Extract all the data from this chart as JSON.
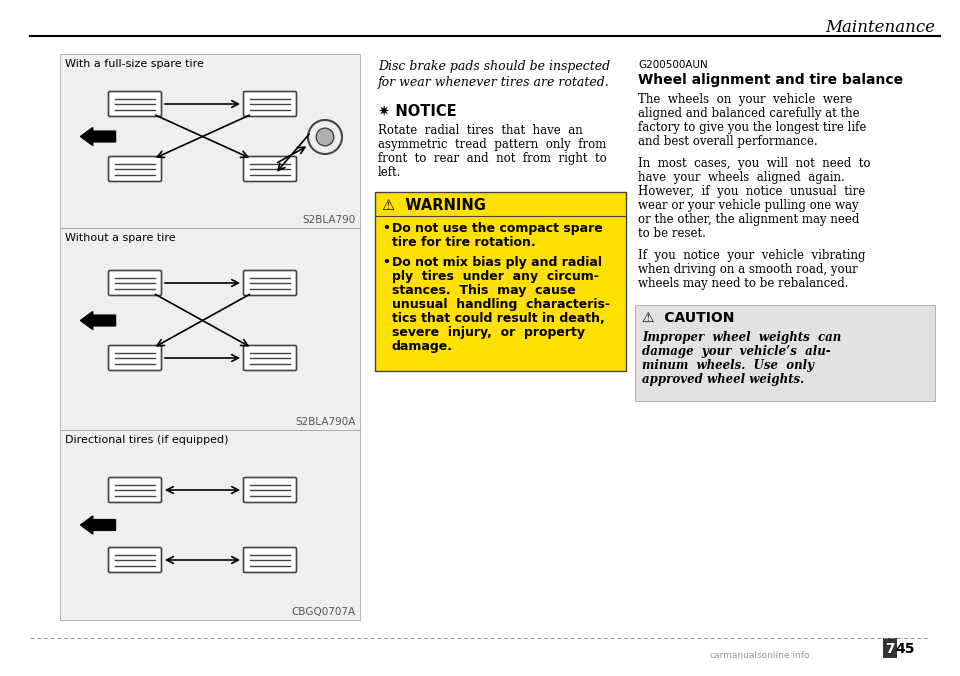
{
  "bg_color": "#ffffff",
  "panel_bg": "#efefef",
  "header_text": "Maintenance",
  "watermark": "carmanualsonline.info",
  "col1_label1": "With a full-size spare tire",
  "col1_label2": "Without a spare tire",
  "col1_label3": "Directional tires (if equipped)",
  "col1_code1": "S2BLA790",
  "col1_code2": "S2BLA790A",
  "col1_code3": "CBGQ0707A",
  "italic_line1": "Disc brake pads should be inspected",
  "italic_line2": "for wear whenever tires are rotated.",
  "notice_title": "✷ NOTICE",
  "notice_body_lines": [
    "Rotate  radial  tires  that  have  an",
    "asymmetric  tread  pattern  only  from",
    "front  to  rear  and  not  from  right  to",
    "left."
  ],
  "warning_title": "⚠  WARNING",
  "warning_bullet1_lines": [
    "Do not use the compact spare",
    "tire for tire rotation."
  ],
  "warning_bullet2_lines": [
    "Do not mix bias ply and radial",
    "ply  tires  under  any  circum-",
    "stances.  This  may  cause",
    "unusual  handling  characteris-",
    "tics that could result in death,",
    "severe  injury,  or  property",
    "damage."
  ],
  "warning_bg": "#FFE000",
  "g200_code": "G200500AUN",
  "right_title": "Wheel alignment and tire balance",
  "right_para1_lines": [
    "The  wheels  on  your  vehicle  were",
    "aligned and balanced carefully at the",
    "factory to give you the longest tire life",
    "and best overall performance."
  ],
  "right_para2_lines": [
    "In  most  cases,  you  will  not  need  to",
    "have  your  wheels  aligned  again.",
    "However,  if  you  notice  unusual  tire",
    "wear or your vehicle pulling one way",
    "or the other, the alignment may need",
    "to be reset."
  ],
  "right_para3_lines": [
    "If  you  notice  your  vehicle  vibrating",
    "when driving on a smooth road, your",
    "wheels may need to be rebalanced."
  ],
  "caution_title": "⚠  CAUTION",
  "caution_body_lines": [
    "Improper  wheel  weights  can",
    "damage  your  vehicle’s  alu-",
    "minum  wheels.  Use  only",
    "approved wheel weights."
  ],
  "caution_bg": "#e2e2e2"
}
